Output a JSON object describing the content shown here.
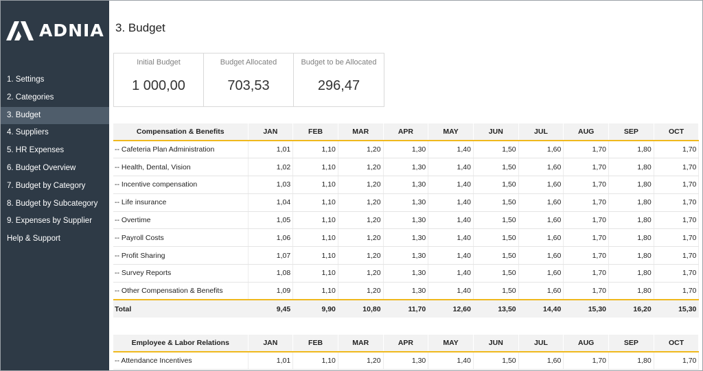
{
  "app": {
    "logo_text": "ADNIA",
    "brand_color": "#2e3a46",
    "accent_color": "#f0b81c"
  },
  "sidebar": {
    "items": [
      {
        "label": "1. Settings",
        "active": false
      },
      {
        "label": "2. Categories",
        "active": false
      },
      {
        "label": "3. Budget",
        "active": true
      },
      {
        "label": "4. Suppliers",
        "active": false
      },
      {
        "label": "5. HR Expenses",
        "active": false
      },
      {
        "label": "6. Budget Overview",
        "active": false
      },
      {
        "label": "7. Budget by Category",
        "active": false
      },
      {
        "label": "8. Budget by Subcategory",
        "active": false
      },
      {
        "label": "9. Expenses by Supplier",
        "active": false
      },
      {
        "label": "Help & Support",
        "active": false
      }
    ]
  },
  "page": {
    "title": "3. Budget"
  },
  "kpis": [
    {
      "label": "Initial Budget",
      "value": "1 000,00"
    },
    {
      "label": "Budget Allocated",
      "value": "703,53"
    },
    {
      "label": "Budget to be Allocated",
      "value": "296,47"
    }
  ],
  "tables": [
    {
      "category": "Compensation & Benefits",
      "months": [
        "JAN",
        "FEB",
        "MAR",
        "APR",
        "MAY",
        "JUN",
        "JUL",
        "AUG",
        "SEP",
        "OCT"
      ],
      "rows": [
        {
          "label": "-- Cafeteria Plan Administration",
          "values": [
            "1,01",
            "1,10",
            "1,20",
            "1,30",
            "1,40",
            "1,50",
            "1,60",
            "1,70",
            "1,80",
            "1,70"
          ]
        },
        {
          "label": "-- Health, Dental, Vision",
          "values": [
            "1,02",
            "1,10",
            "1,20",
            "1,30",
            "1,40",
            "1,50",
            "1,60",
            "1,70",
            "1,80",
            "1,70"
          ]
        },
        {
          "label": "-- Incentive compensation",
          "values": [
            "1,03",
            "1,10",
            "1,20",
            "1,30",
            "1,40",
            "1,50",
            "1,60",
            "1,70",
            "1,80",
            "1,70"
          ]
        },
        {
          "label": "-- Life insurance",
          "values": [
            "1,04",
            "1,10",
            "1,20",
            "1,30",
            "1,40",
            "1,50",
            "1,60",
            "1,70",
            "1,80",
            "1,70"
          ]
        },
        {
          "label": "-- Overtime",
          "values": [
            "1,05",
            "1,10",
            "1,20",
            "1,30",
            "1,40",
            "1,50",
            "1,60",
            "1,70",
            "1,80",
            "1,70"
          ]
        },
        {
          "label": "-- Payroll Costs",
          "values": [
            "1,06",
            "1,10",
            "1,20",
            "1,30",
            "1,40",
            "1,50",
            "1,60",
            "1,70",
            "1,80",
            "1,70"
          ]
        },
        {
          "label": "-- Profit Sharing",
          "values": [
            "1,07",
            "1,10",
            "1,20",
            "1,30",
            "1,40",
            "1,50",
            "1,60",
            "1,70",
            "1,80",
            "1,70"
          ]
        },
        {
          "label": "-- Survey Reports",
          "values": [
            "1,08",
            "1,10",
            "1,20",
            "1,30",
            "1,40",
            "1,50",
            "1,60",
            "1,70",
            "1,80",
            "1,70"
          ]
        },
        {
          "label": "-- Other Compensation & Benefits",
          "values": [
            "1,09",
            "1,10",
            "1,20",
            "1,30",
            "1,40",
            "1,50",
            "1,60",
            "1,70",
            "1,80",
            "1,70"
          ]
        }
      ],
      "total": {
        "label": "Total",
        "values": [
          "9,45",
          "9,90",
          "10,80",
          "11,70",
          "12,60",
          "13,50",
          "14,40",
          "15,30",
          "16,20",
          "15,30"
        ]
      }
    },
    {
      "category": "Employee & Labor Relations",
      "months": [
        "JAN",
        "FEB",
        "MAR",
        "APR",
        "MAY",
        "JUN",
        "JUL",
        "AUG",
        "SEP",
        "OCT"
      ],
      "rows": [
        {
          "label": "-- Attendance Incentives",
          "values": [
            "1,01",
            "1,10",
            "1,20",
            "1,30",
            "1,40",
            "1,50",
            "1,60",
            "1,70",
            "1,80",
            "1,70"
          ]
        }
      ]
    }
  ]
}
